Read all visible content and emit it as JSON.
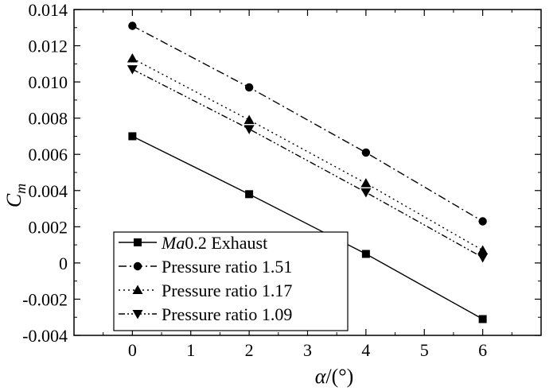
{
  "chart_data": {
    "type": "line",
    "title": "",
    "xlabel": {
      "main": "α",
      "suffix": "/(°)"
    },
    "ylabel": {
      "main": "C",
      "sub": "m"
    },
    "xlim": [
      -1,
      7
    ],
    "ylim": [
      -0.004,
      0.014
    ],
    "xticks": [
      0,
      1,
      2,
      3,
      4,
      5,
      6
    ],
    "xtick_labels": [
      "0",
      "1",
      "2",
      "3",
      "4",
      "5",
      "6"
    ],
    "yticks": [
      -0.004,
      -0.002,
      0,
      0.002,
      0.004,
      0.006,
      0.008,
      0.01,
      0.012,
      0.014
    ],
    "ytick_labels": [
      "-0.004",
      "-0.002",
      "0",
      "0.002",
      "0.004",
      "0.006",
      "0.008",
      "0.010",
      "0.012",
      "0.014"
    ],
    "grid": false,
    "legend_position": "bottom-left",
    "x": [
      0,
      2,
      4,
      6
    ],
    "series": [
      {
        "name_italic": "Ma",
        "name": "0.2 Exhaust",
        "values": [
          0.007,
          0.0038,
          0.0005,
          -0.0031
        ],
        "marker": "square",
        "dash": "solid"
      },
      {
        "name": "Pressure ratio 1.51",
        "values": [
          0.0131,
          0.0097,
          0.0061,
          0.0023
        ],
        "marker": "circle",
        "dash": "dashdot"
      },
      {
        "name": "Pressure ratio 1.17",
        "values": [
          0.0113,
          0.0079,
          0.0044,
          0.0007
        ],
        "marker": "triangle-up",
        "dash": "dotted"
      },
      {
        "name": "Pressure ratio 1.09",
        "values": [
          0.0107,
          0.0074,
          0.0039,
          0.0003
        ],
        "marker": "triangle-down",
        "dash": "dashdotdot"
      }
    ],
    "colors": {
      "line": "#000000",
      "background": "#ffffff"
    }
  }
}
